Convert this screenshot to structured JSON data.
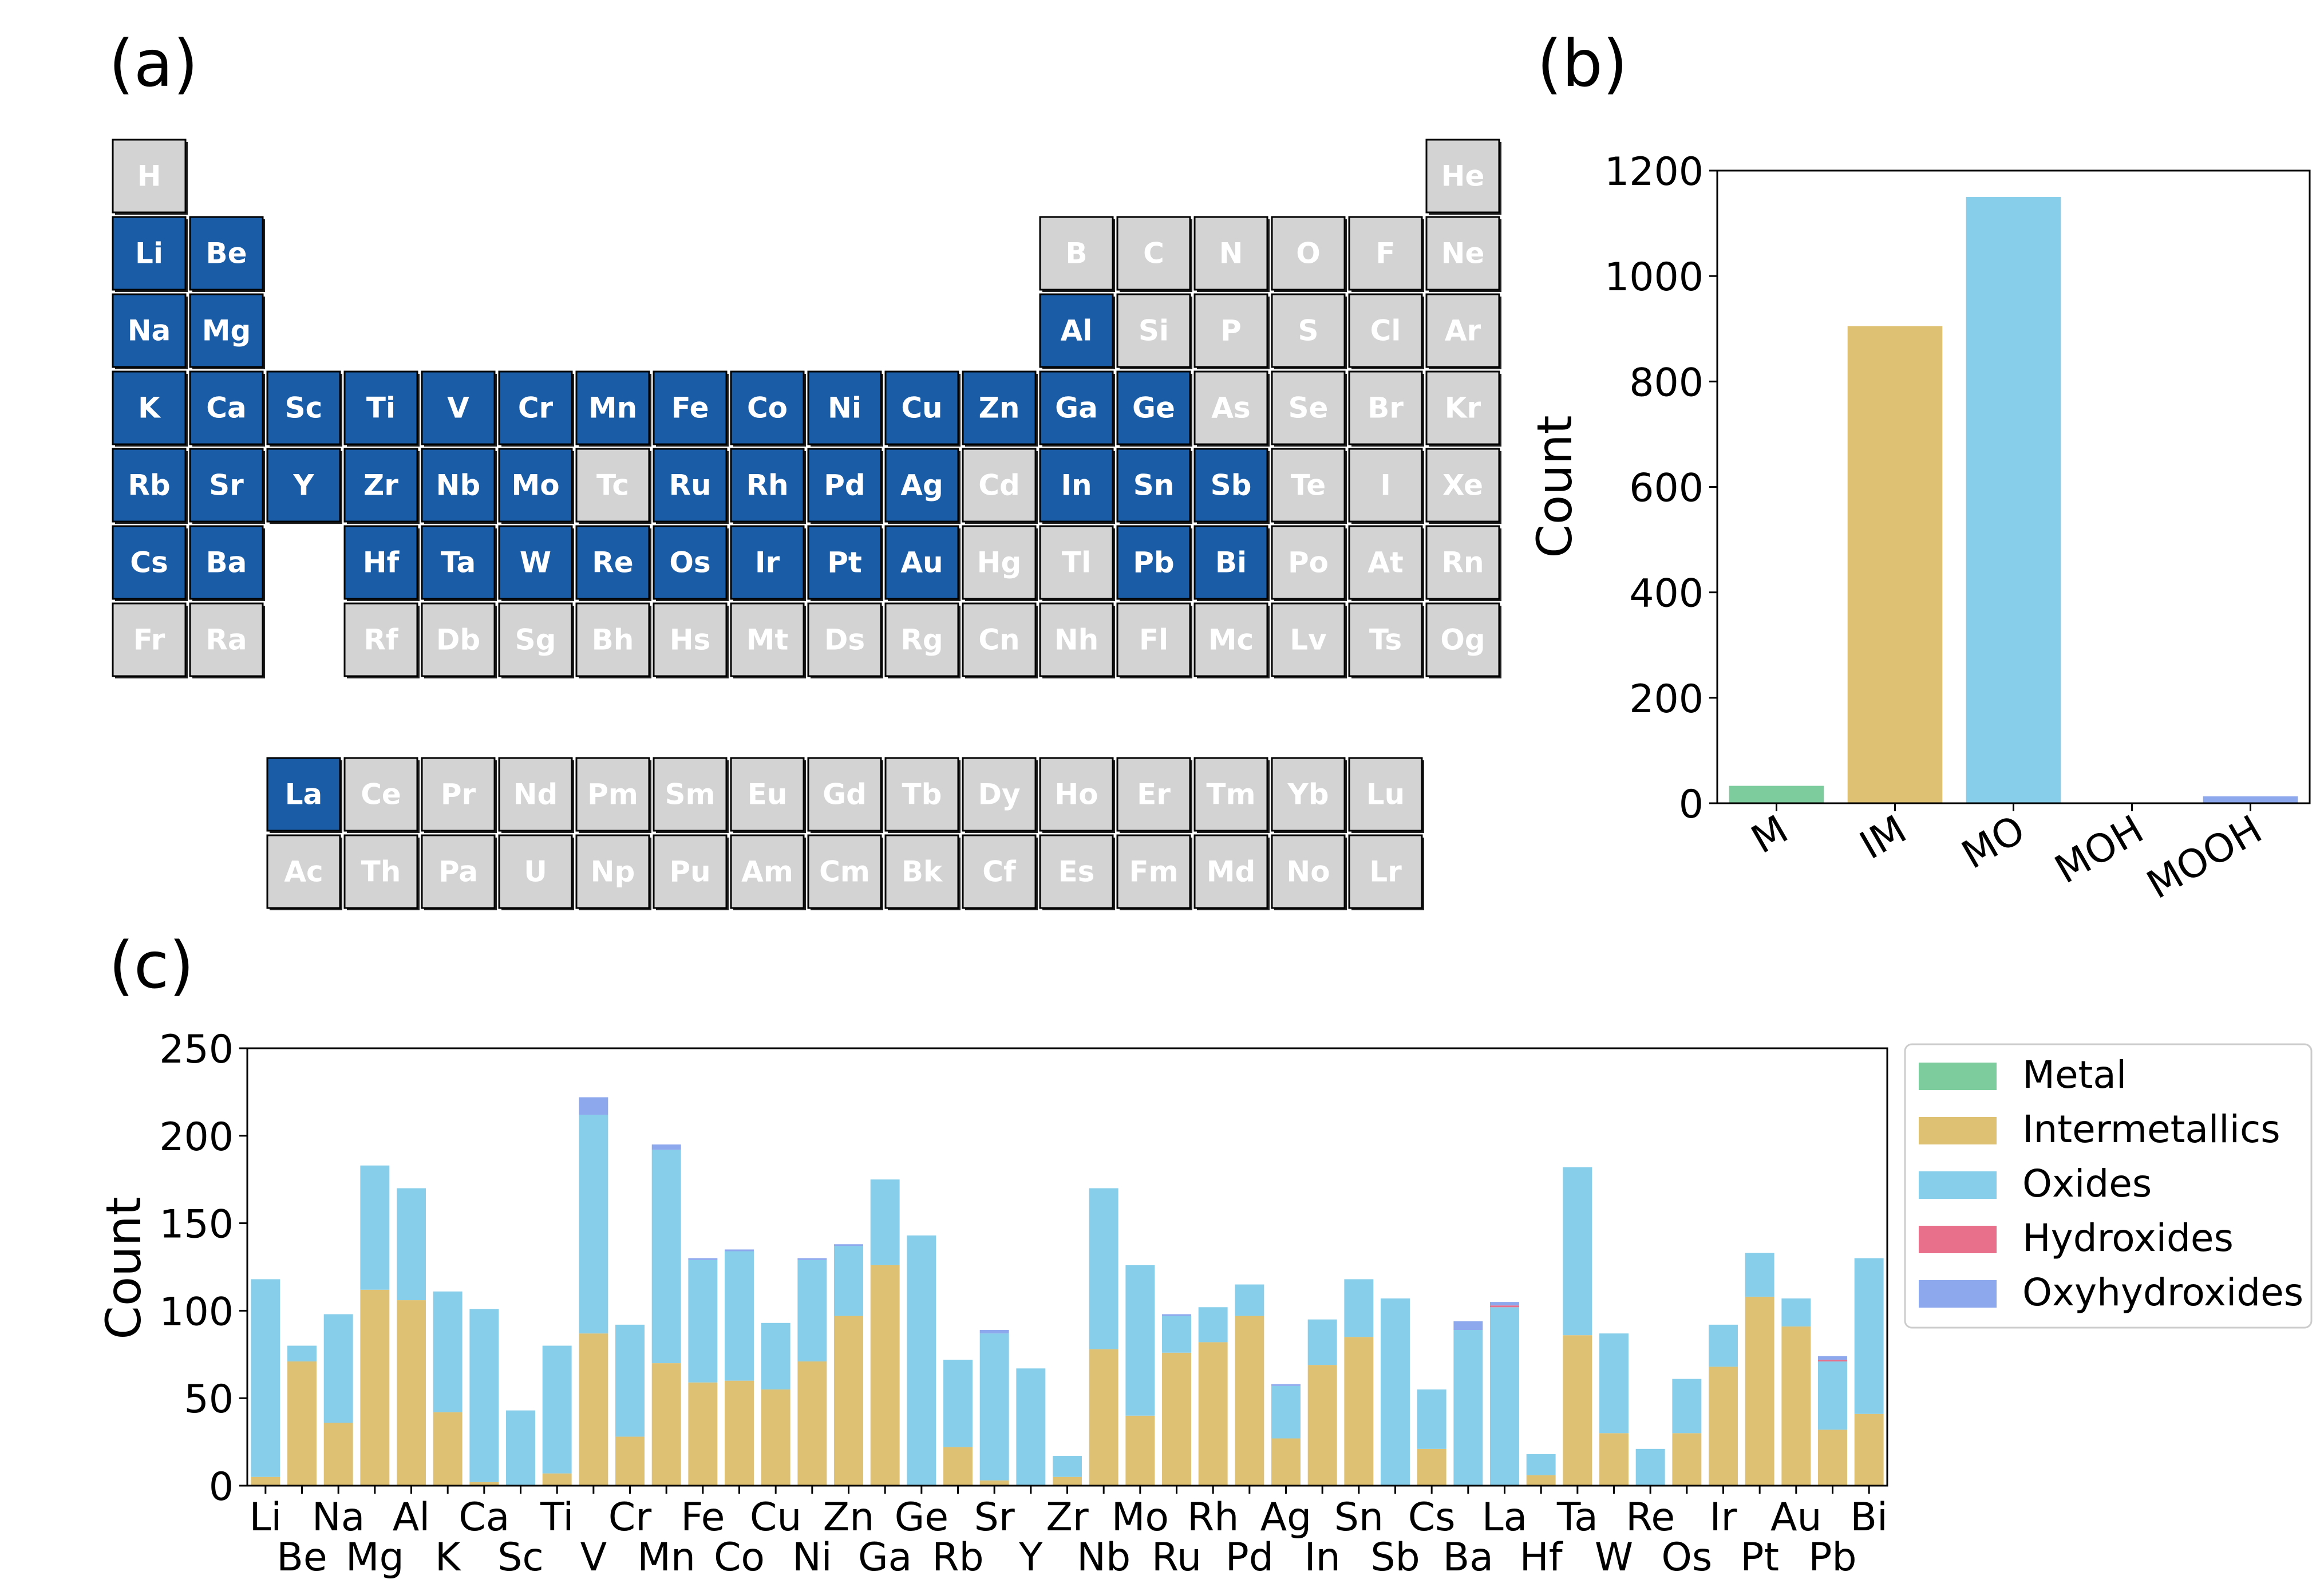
{
  "panel_labels": {
    "a": "(a)",
    "b": "(b)",
    "c": "(c)"
  },
  "colors": {
    "highlight": "#1a5da6",
    "inactive": "#d3d3d3",
    "metal": "#7dcc9e",
    "intermetallics": "#dfc174",
    "oxides": "#87ceea",
    "hydroxides": "#e8708a",
    "oxyhydroxides": "#8ea8ee"
  },
  "periodic_table": {
    "main_rows": [
      [
        "H",
        "",
        "",
        "",
        "",
        "",
        "",
        "",
        "",
        "",
        "",
        "",
        "",
        "",
        "",
        "",
        "",
        "He"
      ],
      [
        "Li",
        "Be",
        "",
        "",
        "",
        "",
        "",
        "",
        "",
        "",
        "",
        "",
        "B",
        "C",
        "N",
        "O",
        "F",
        "Ne"
      ],
      [
        "Na",
        "Mg",
        "",
        "",
        "",
        "",
        "",
        "",
        "",
        "",
        "",
        "",
        "Al",
        "Si",
        "P",
        "S",
        "Cl",
        "Ar"
      ],
      [
        "K",
        "Ca",
        "Sc",
        "Ti",
        "V",
        "Cr",
        "Mn",
        "Fe",
        "Co",
        "Ni",
        "Cu",
        "Zn",
        "Ga",
        "Ge",
        "As",
        "Se",
        "Br",
        "Kr"
      ],
      [
        "Rb",
        "Sr",
        "Y",
        "Zr",
        "Nb",
        "Mo",
        "Tc",
        "Ru",
        "Rh",
        "Pd",
        "Ag",
        "Cd",
        "In",
        "Sn",
        "Sb",
        "Te",
        "I",
        "Xe"
      ],
      [
        "Cs",
        "Ba",
        "",
        "Hf",
        "Ta",
        "W",
        "Re",
        "Os",
        "Ir",
        "Pt",
        "Au",
        "Hg",
        "Tl",
        "Pb",
        "Bi",
        "Po",
        "At",
        "Rn"
      ],
      [
        "Fr",
        "Ra",
        "",
        "Rf",
        "Db",
        "Sg",
        "Bh",
        "Hs",
        "Mt",
        "Ds",
        "Rg",
        "Cn",
        "Nh",
        "Fl",
        "Mc",
        "Lv",
        "Ts",
        "Og"
      ]
    ],
    "f_rows": [
      [
        "La",
        "Ce",
        "Pr",
        "Nd",
        "Pm",
        "Sm",
        "Eu",
        "Gd",
        "Tb",
        "Dy",
        "Ho",
        "Er",
        "Tm",
        "Yb",
        "Lu"
      ],
      [
        "Ac",
        "Th",
        "Pa",
        "U",
        "Np",
        "Pu",
        "Am",
        "Cm",
        "Bk",
        "Cf",
        "Es",
        "Fm",
        "Md",
        "No",
        "Lr"
      ]
    ],
    "highlighted": [
      "Li",
      "Be",
      "Na",
      "Mg",
      "Al",
      "K",
      "Ca",
      "Sc",
      "Ti",
      "V",
      "Cr",
      "Mn",
      "Fe",
      "Co",
      "Ni",
      "Cu",
      "Zn",
      "Ga",
      "Ge",
      "Rb",
      "Sr",
      "Y",
      "Zr",
      "Nb",
      "Mo",
      "Ru",
      "Rh",
      "Pd",
      "Ag",
      "In",
      "Sn",
      "Sb",
      "Cs",
      "Ba",
      "Hf",
      "Ta",
      "W",
      "Re",
      "Os",
      "Ir",
      "Pt",
      "Au",
      "Pb",
      "Bi",
      "La"
    ]
  },
  "chart_data": [
    {
      "type": "bar",
      "panel": "b",
      "categories": [
        "M",
        "IM",
        "MO",
        "MOH",
        "MOOH"
      ],
      "values": [
        33,
        905,
        1150,
        0,
        13
      ],
      "colors": [
        "#7dcc9e",
        "#dfc174",
        "#87ceea",
        "#e8708a",
        "#8ea8ee"
      ],
      "ylabel": "Count",
      "ylim": [
        0,
        1200
      ],
      "yticks": [
        0,
        200,
        400,
        600,
        800,
        1000,
        1200
      ],
      "grid": false
    },
    {
      "type": "bar",
      "stacked": true,
      "panel": "c",
      "categories": [
        "Li",
        "Be",
        "Na",
        "Mg",
        "Al",
        "K",
        "Ca",
        "Sc",
        "Ti",
        "V",
        "Cr",
        "Mn",
        "Fe",
        "Co",
        "Cu",
        "Ni",
        "Zn",
        "Ga",
        "Ge",
        "Rb",
        "Sr",
        "Y",
        "Zr",
        "Nb",
        "Mo",
        "Ru",
        "Rh",
        "Pd",
        "Ag",
        "In",
        "Sn",
        "Sb",
        "Cs",
        "Ba",
        "La",
        "Hf",
        "Ta",
        "W",
        "Re",
        "Os",
        "Ir",
        "Pt",
        "Au",
        "Pb",
        "Bi"
      ],
      "series": [
        {
          "name": "Metal",
          "values": [
            0,
            0,
            0,
            0,
            0,
            0,
            0,
            0,
            0,
            0,
            0,
            0,
            0,
            0,
            0,
            0,
            0,
            0,
            0,
            0,
            0,
            0,
            0,
            0,
            0,
            0,
            0,
            0,
            0,
            0,
            0,
            0,
            0,
            0,
            0,
            0,
            0,
            0,
            0,
            0,
            0,
            0,
            0,
            0,
            0
          ]
        },
        {
          "name": "Intermetallics",
          "values": [
            5,
            71,
            36,
            112,
            106,
            42,
            2,
            0,
            7,
            87,
            28,
            70,
            59,
            60,
            55,
            71,
            97,
            126,
            0,
            22,
            3,
            0,
            5,
            78,
            40,
            76,
            82,
            97,
            27,
            69,
            85,
            0,
            21,
            0,
            0,
            6,
            86,
            30,
            0,
            30,
            68,
            108,
            91,
            32,
            41
          ]
        },
        {
          "name": "Oxides",
          "values": [
            113,
            9,
            62,
            71,
            64,
            69,
            99,
            43,
            73,
            125,
            64,
            122,
            70,
            74,
            38,
            58,
            40,
            49,
            143,
            50,
            84,
            67,
            12,
            92,
            86,
            21,
            20,
            18,
            30,
            26,
            33,
            107,
            34,
            89,
            102,
            12,
            96,
            57,
            21,
            31,
            24,
            25,
            16,
            39,
            89
          ]
        },
        {
          "name": "Hydroxides",
          "values": [
            0,
            0,
            0,
            0,
            0,
            0,
            0,
            0,
            0,
            0,
            0,
            0,
            0,
            0,
            0,
            0,
            0,
            0,
            0,
            0,
            0,
            0,
            0,
            0,
            0,
            0,
            0,
            0,
            0,
            0,
            0,
            0,
            0,
            0,
            1,
            0,
            0,
            0,
            0,
            0,
            0,
            0,
            0,
            1,
            0
          ]
        },
        {
          "name": "Oxyhydroxides",
          "values": [
            0,
            0,
            0,
            0,
            0,
            0,
            0,
            0,
            0,
            10,
            0,
            3,
            1,
            1,
            0,
            1,
            1,
            0,
            0,
            0,
            2,
            0,
            0,
            0,
            0,
            1,
            0,
            0,
            1,
            0,
            0,
            0,
            0,
            5,
            2,
            0,
            0,
            0,
            0,
            0,
            0,
            0,
            0,
            2,
            0
          ]
        }
      ],
      "ylabel": "Count",
      "ylim": [
        0,
        250
      ],
      "yticks": [
        0,
        50,
        100,
        150,
        200,
        250
      ],
      "legend": {
        "placement": "right",
        "entries": [
          "Metal",
          "Intermetallics",
          "Oxides",
          "Hydroxides",
          "Oxyhydroxides"
        ]
      },
      "grid": false
    }
  ]
}
